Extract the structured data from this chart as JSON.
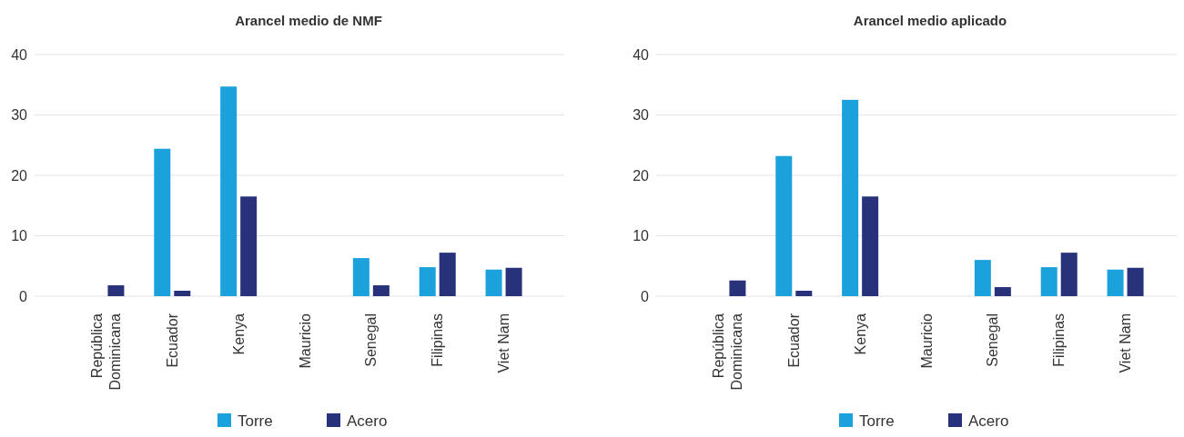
{
  "chart_data": [
    {
      "type": "bar",
      "title": "Arancel medio de NMF",
      "categories": [
        "República\nDominicana",
        "Ecuador",
        "Kenya",
        "Mauricio",
        "Senegal",
        "Filipinas",
        "Viet Nam"
      ],
      "ylim": [
        0,
        40
      ],
      "yticks": [
        0,
        10,
        20,
        30,
        40
      ],
      "grid": "y",
      "legend": "bottom",
      "series": [
        {
          "name": "Torre",
          "color": "#1ba1dc",
          "values": [
            null,
            24.4,
            34.7,
            null,
            6.3,
            4.8,
            4.4
          ]
        },
        {
          "name": "Acero",
          "color": "#27327a",
          "values": [
            1.8,
            0.9,
            16.5,
            null,
            1.8,
            7.2,
            4.7
          ]
        }
      ]
    },
    {
      "type": "bar",
      "title": "Arancel medio aplicado",
      "categories": [
        "República\nDominicana",
        "Ecuador",
        "Kenya",
        "Mauricio",
        "Senegal",
        "Filipinas",
        "Viet Nam"
      ],
      "ylim": [
        0,
        40
      ],
      "yticks": [
        0,
        10,
        20,
        30,
        40
      ],
      "grid": "y",
      "legend": "bottom",
      "series": [
        {
          "name": "Torre",
          "color": "#1ba1dc",
          "values": [
            null,
            23.2,
            32.5,
            null,
            6.0,
            4.8,
            4.4
          ]
        },
        {
          "name": "Acero",
          "color": "#27327a",
          "values": [
            2.6,
            0.9,
            16.5,
            null,
            1.5,
            7.2,
            4.7
          ]
        }
      ]
    }
  ]
}
